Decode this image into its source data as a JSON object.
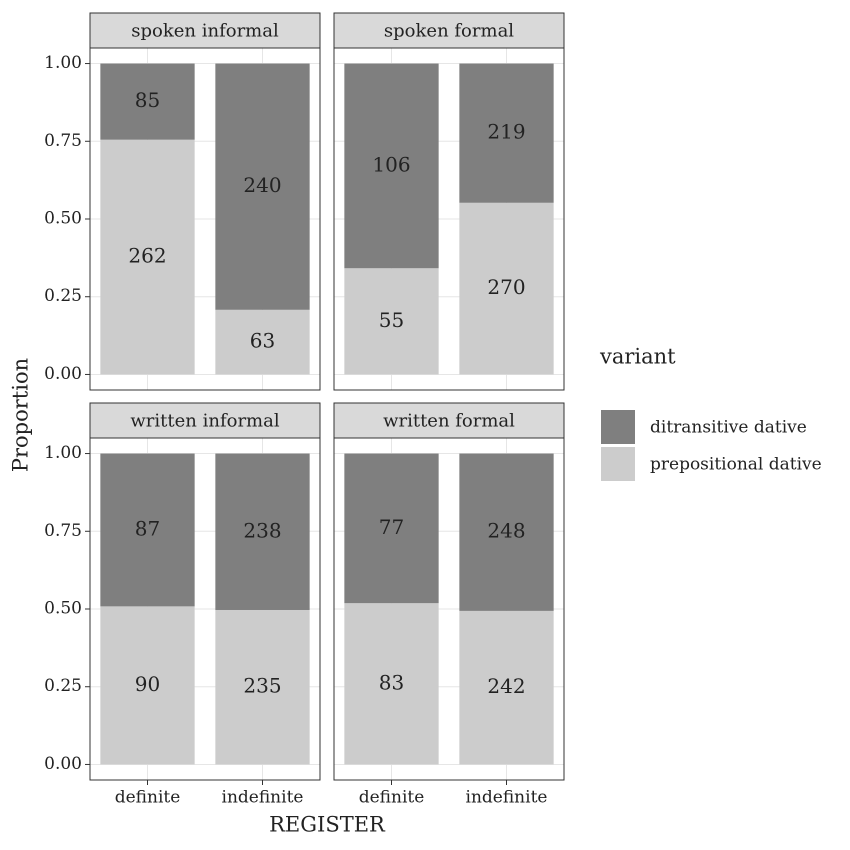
{
  "chart_data": {
    "type": "bar",
    "stacking": "fill",
    "x_label": "REGISTER",
    "y_label": "Proportion",
    "legend_title": "variant",
    "categories": [
      "definite",
      "indefinite"
    ],
    "ylim": [
      -0.05,
      1.05
    ],
    "yticks": [
      {
        "value": 0,
        "label": "0.00"
      },
      {
        "value": 0.25,
        "label": "0.25"
      },
      {
        "value": 0.5,
        "label": "0.50"
      },
      {
        "value": 0.75,
        "label": "0.75"
      },
      {
        "value": 1,
        "label": "1.00"
      }
    ],
    "grid": true,
    "facets": [
      {
        "title": "spoken informal",
        "series": [
          {
            "name": "ditransitive dative",
            "color": "#7f7f7f",
            "values": [
              85,
              240
            ]
          },
          {
            "name": "prepositional dative",
            "color": "#cccccc",
            "values": [
              262,
              63
            ]
          }
        ]
      },
      {
        "title": "spoken formal",
        "series": [
          {
            "name": "ditransitive dative",
            "color": "#7f7f7f",
            "values": [
              106,
              219
            ]
          },
          {
            "name": "prepositional dative",
            "color": "#cccccc",
            "values": [
              55,
              270
            ]
          }
        ]
      },
      {
        "title": "written informal",
        "series": [
          {
            "name": "ditransitive dative",
            "color": "#7f7f7f",
            "values": [
              87,
              238
            ]
          },
          {
            "name": "prepositional dative",
            "color": "#cccccc",
            "values": [
              90,
              235
            ]
          }
        ]
      },
      {
        "title": "written formal",
        "series": [
          {
            "name": "ditransitive dative",
            "color": "#7f7f7f",
            "values": [
              77,
              248
            ]
          },
          {
            "name": "prepositional dative",
            "color": "#cccccc",
            "values": [
              83,
              242
            ]
          }
        ]
      }
    ]
  }
}
